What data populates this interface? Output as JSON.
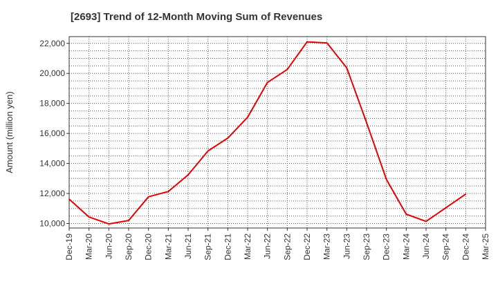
{
  "chart_data": {
    "type": "line",
    "title": "[2693]  Trend of 12-Month Moving Sum of Revenues",
    "xlabel": "",
    "ylabel": "Amount (million yen)",
    "categories": [
      "Dec-19",
      "Mar-20",
      "Jun-20",
      "Sep-20",
      "Dec-20",
      "Mar-21",
      "Jun-21",
      "Sep-21",
      "Dec-21",
      "Mar-22",
      "Jun-22",
      "Sep-22",
      "Dec-22",
      "Mar-23",
      "Jun-23",
      "Sep-23",
      "Dec-23",
      "Mar-24",
      "Jun-24",
      "Sep-24",
      "Dec-24",
      "Mar-25"
    ],
    "series": [
      {
        "color": "#e60000",
        "values": [
          11620,
          10430,
          9970,
          10200,
          11780,
          12130,
          13240,
          14830,
          15690,
          17080,
          19400,
          20260,
          22100,
          22030,
          20370,
          16720,
          12930,
          10620,
          10140,
          11050,
          11960,
          null
        ]
      }
    ],
    "ylim": [
      9700,
      22450
    ],
    "yticks": [
      10000,
      12000,
      14000,
      16000,
      18000,
      20000,
      22000
    ],
    "ytick_labels": [
      "10,000",
      "12,000",
      "14,000",
      "16,000",
      "18,000",
      "20,000",
      "22,000"
    ],
    "grid": true,
    "legend": "none"
  }
}
